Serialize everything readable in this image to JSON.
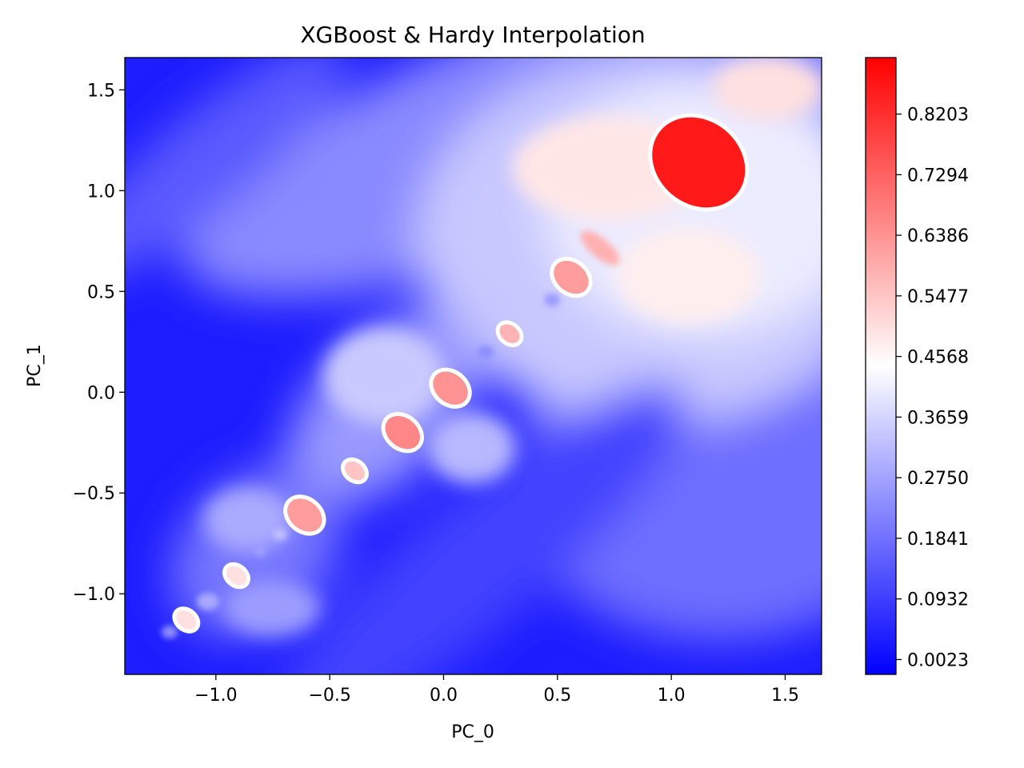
{
  "chart_data": {
    "type": "heatmap",
    "title": "XGBoost & Hardy Interpolation",
    "xlabel": "PC_0",
    "ylabel": "PC_1",
    "xlim": [
      -1.4,
      1.66
    ],
    "ylim": [
      -1.4,
      1.66
    ],
    "x_ticks": [
      -1.0,
      -0.5,
      0.0,
      0.5,
      1.0,
      1.5
    ],
    "x_tick_labels": [
      "−1.0",
      "−0.5",
      "0.0",
      "0.5",
      "1.0",
      "1.5"
    ],
    "y_ticks": [
      -1.0,
      -0.5,
      0.0,
      0.5,
      1.0,
      1.5
    ],
    "y_tick_labels": [
      "−1.0",
      "−0.5",
      "0.0",
      "0.5",
      "1.0",
      "1.5"
    ],
    "colormap": "bwr",
    "colors": {
      "low": "#0000ff",
      "mid": "#ffffff",
      "high": "#ff0000"
    },
    "colorbar": {
      "vmin": -0.02,
      "vmax": 0.905,
      "ticks": [
        0.0023,
        0.0932,
        0.1841,
        0.275,
        0.3659,
        0.4568,
        0.5477,
        0.6386,
        0.7294,
        0.8203
      ],
      "tick_labels": [
        "0.0023",
        "0.0932",
        "0.1841",
        "0.2750",
        "0.3659",
        "0.4568",
        "0.5477",
        "0.6386",
        "0.7294",
        "0.8203"
      ]
    },
    "hotspots": [
      {
        "x": 1.12,
        "y": 1.14,
        "value": 0.86
      },
      {
        "x": 0.56,
        "y": 0.57,
        "value": 0.62
      },
      {
        "x": 0.29,
        "y": 0.29,
        "value": 0.58
      },
      {
        "x": 0.03,
        "y": 0.02,
        "value": 0.64
      },
      {
        "x": -0.18,
        "y": -0.2,
        "value": 0.66
      },
      {
        "x": -0.39,
        "y": -0.39,
        "value": 0.55
      },
      {
        "x": -0.61,
        "y": -0.61,
        "value": 0.62
      },
      {
        "x": -0.91,
        "y": -0.91,
        "value": 0.5
      },
      {
        "x": -1.13,
        "y": -1.13,
        "value": 0.5
      }
    ]
  }
}
